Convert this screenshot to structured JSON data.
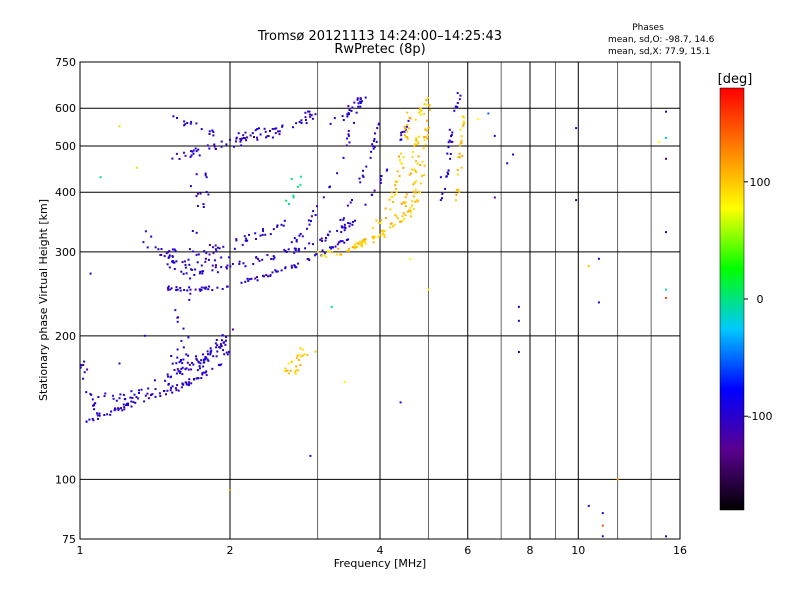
{
  "chart_data": {
    "type": "scatter",
    "title": "Tromsø 20121113 14:24:00–14:25:43",
    "subtitle": "RwPretec (8p)",
    "xlabel": "Frequency [MHz]",
    "ylabel": "Stationary phase Virtual Height [km]",
    "x_scale": "log",
    "y_scale": "log",
    "xlim": [
      1,
      16
    ],
    "ylim": [
      75,
      750
    ],
    "x_ticks": [
      1,
      2,
      4,
      6,
      8,
      10,
      16
    ],
    "x_minor_ticks": [
      3,
      5,
      7,
      9,
      12,
      14
    ],
    "y_ticks": [
      75,
      100,
      200,
      300,
      400,
      500,
      600,
      750
    ],
    "grid": true,
    "stats": {
      "title": "Phases",
      "line_o": "mean, sd,O: -98.7, 14.6",
      "line_x": "mean, sd,X:  77.9, 15.1"
    },
    "colorbar": {
      "label": "[deg]",
      "ticks": [
        100,
        0,
        -100
      ],
      "range": [
        -180,
        180
      ],
      "colors": [
        "#000000",
        "#5a0090",
        "#0000ff",
        "#00c8ff",
        "#00ff00",
        "#ffff00",
        "#ff8000",
        "#ff0000"
      ]
    },
    "traces": [
      {
        "points": [
          [
            1.0,
            132
          ],
          [
            1.05,
            133
          ],
          [
            1.1,
            136
          ],
          [
            1.15,
            138
          ],
          [
            1.2,
            140
          ],
          [
            1.25,
            143
          ],
          [
            1.3,
            146
          ],
          [
            1.35,
            148
          ],
          [
            1.4,
            150
          ],
          [
            1.5,
            153
          ],
          [
            1.6,
            157
          ],
          [
            1.7,
            162
          ],
          [
            1.8,
            168
          ],
          [
            1.9,
            176
          ],
          [
            2.0,
            186
          ]
        ],
        "phase": -100,
        "count": 90,
        "spread": 0.015
      },
      {
        "points": [
          [
            1.05,
            152
          ],
          [
            1.1,
            150
          ],
          [
            1.2,
            148
          ],
          [
            1.3,
            151
          ],
          [
            1.4,
            156
          ],
          [
            1.5,
            162
          ],
          [
            1.6,
            168
          ],
          [
            1.7,
            175
          ],
          [
            1.8,
            183
          ],
          [
            1.9,
            192
          ],
          [
            2.0,
            204
          ]
        ],
        "phase": -100,
        "count": 60,
        "spread": 0.02
      },
      {
        "points": [
          [
            1.0,
            178
          ],
          [
            1.02,
            165
          ],
          [
            1.04,
            150
          ],
          [
            1.06,
            140
          ]
        ],
        "phase": -100,
        "count": 14,
        "spread": 0.03
      },
      {
        "points": [
          [
            1.5,
            252
          ],
          [
            1.7,
            250
          ],
          [
            1.9,
            252
          ],
          [
            2.1,
            258
          ],
          [
            2.3,
            265
          ],
          [
            2.5,
            273
          ],
          [
            2.7,
            280
          ],
          [
            2.9,
            290
          ],
          [
            3.1,
            300
          ],
          [
            3.3,
            312
          ],
          [
            3.5,
            322
          ]
        ],
        "phase": -100,
        "count": 80,
        "spread": 0.01
      },
      {
        "points": [
          [
            1.5,
            275
          ],
          [
            1.7,
            272
          ],
          [
            1.9,
            275
          ],
          [
            2.1,
            283
          ],
          [
            2.4,
            292
          ],
          [
            2.7,
            302
          ],
          [
            3.0,
            315
          ],
          [
            3.3,
            330
          ],
          [
            3.6,
            350
          ]
        ],
        "phase": -100,
        "count": 60,
        "spread": 0.015
      },
      {
        "points": [
          [
            1.4,
            300
          ],
          [
            1.6,
            298
          ],
          [
            1.8,
            302
          ],
          [
            2.0,
            310
          ],
          [
            2.2,
            320
          ],
          [
            2.4,
            332
          ],
          [
            2.6,
            345
          ]
        ],
        "phase": -100,
        "count": 40,
        "spread": 0.02
      },
      {
        "points": [
          [
            1.3,
            330
          ],
          [
            1.4,
            310
          ],
          [
            1.5,
            295
          ],
          [
            1.6,
            285
          ],
          [
            1.7,
            280
          ],
          [
            1.8,
            282
          ],
          [
            1.9,
            290
          ],
          [
            2.0,
            300
          ]
        ],
        "phase": -100,
        "count": 40,
        "spread": 0.04
      },
      {
        "points": [
          [
            1.5,
            470
          ],
          [
            1.7,
            485
          ],
          [
            1.9,
            500
          ],
          [
            2.1,
            510
          ],
          [
            2.3,
            520
          ],
          [
            2.5,
            535
          ],
          [
            2.7,
            555
          ],
          [
            2.9,
            580
          ],
          [
            3.0,
            600
          ]
        ],
        "phase": -100,
        "count": 55,
        "spread": 0.02
      },
      {
        "points": [
          [
            1.55,
            580
          ],
          [
            1.7,
            545
          ],
          [
            1.9,
            520
          ],
          [
            2.1,
            525
          ],
          [
            2.4,
            540
          ],
          [
            2.7,
            560
          ],
          [
            2.9,
            590
          ]
        ],
        "phase": -100,
        "count": 40,
        "spread": 0.02
      },
      {
        "points": [
          [
            1.6,
            160
          ],
          [
            1.6,
            220
          ],
          [
            1.65,
            280
          ],
          [
            1.7,
            350
          ],
          [
            1.75,
            420
          ],
          [
            1.8,
            500
          ]
        ],
        "phase": -100,
        "count": 40,
        "spread": 0.04
      },
      {
        "points": [
          [
            1.55,
            180
          ],
          [
            1.6,
            170
          ],
          [
            1.7,
            172
          ],
          [
            1.8,
            180
          ],
          [
            1.9,
            190
          ],
          [
            2.0,
            200
          ]
        ],
        "phase": -100,
        "count": 45,
        "spread": 0.02
      },
      {
        "points": [
          [
            2.6,
            300
          ],
          [
            2.8,
            330
          ],
          [
            3.0,
            370
          ],
          [
            3.2,
            420
          ],
          [
            3.4,
            480
          ],
          [
            3.5,
            540
          ],
          [
            3.6,
            600
          ],
          [
            3.7,
            640
          ]
        ],
        "phase": -100,
        "count": 35,
        "spread": 0.01
      },
      {
        "points": [
          [
            3.0,
            310
          ],
          [
            3.2,
            330
          ],
          [
            3.4,
            360
          ],
          [
            3.6,
            410
          ],
          [
            3.8,
            460
          ],
          [
            3.9,
            510
          ],
          [
            4.0,
            560
          ]
        ],
        "phase": -100,
        "count": 30,
        "spread": 0.01
      },
      {
        "points": [
          [
            3.3,
            330
          ],
          [
            3.6,
            355
          ],
          [
            3.9,
            400
          ],
          [
            4.2,
            460
          ],
          [
            4.4,
            520
          ],
          [
            4.6,
            580
          ]
        ],
        "phase": -100,
        "count": 25,
        "spread": 0.01
      },
      {
        "points": [
          [
            3.2,
            560
          ],
          [
            3.4,
            580
          ],
          [
            3.6,
            610
          ],
          [
            3.7,
            640
          ]
        ],
        "phase": -100,
        "count": 20,
        "spread": 0.02
      },
      {
        "points": [
          [
            5.3,
            380
          ],
          [
            5.4,
            420
          ],
          [
            5.5,
            480
          ],
          [
            5.6,
            560
          ],
          [
            5.7,
            620
          ],
          [
            5.8,
            650
          ]
        ],
        "phase": -100,
        "count": 30,
        "spread": 0.01
      },
      {
        "points": [
          [
            3.0,
            295
          ],
          [
            3.3,
            300
          ],
          [
            3.6,
            310
          ],
          [
            3.9,
            320
          ],
          [
            4.2,
            335
          ],
          [
            4.5,
            355
          ],
          [
            4.7,
            380
          ],
          [
            4.8,
            420
          ],
          [
            4.9,
            480
          ],
          [
            4.95,
            540
          ],
          [
            5.0,
            640
          ]
        ],
        "phase": 100,
        "count": 90,
        "spread": 0.015
      },
      {
        "points": [
          [
            3.5,
            305
          ],
          [
            3.8,
            318
          ],
          [
            4.1,
            335
          ],
          [
            4.4,
            360
          ],
          [
            4.6,
            400
          ],
          [
            4.7,
            460
          ],
          [
            4.75,
            540
          ],
          [
            4.8,
            620
          ]
        ],
        "phase": 100,
        "count": 60,
        "spread": 0.015
      },
      {
        "points": [
          [
            3.9,
            340
          ],
          [
            4.1,
            360
          ],
          [
            4.3,
            400
          ],
          [
            4.4,
            450
          ],
          [
            4.5,
            520
          ],
          [
            4.6,
            580
          ]
        ],
        "phase": 100,
        "count": 40,
        "spread": 0.015
      },
      {
        "points": [
          [
            5.7,
            380
          ],
          [
            5.75,
            420
          ],
          [
            5.8,
            480
          ],
          [
            5.85,
            540
          ],
          [
            5.9,
            580
          ]
        ],
        "phase": 100,
        "count": 25,
        "spread": 0.01
      },
      {
        "points": [
          [
            2.6,
            168
          ],
          [
            2.7,
            175
          ],
          [
            2.8,
            182
          ],
          [
            2.9,
            188
          ]
        ],
        "phase": 100,
        "count": 25,
        "spread": 0.03
      },
      {
        "points": [
          [
            2.6,
            380
          ],
          [
            2.7,
            410
          ],
          [
            2.8,
            440
          ]
        ],
        "phase": 0,
        "count": 8,
        "spread": 0.04
      }
    ],
    "isolated_points": [
      {
        "x": 1.05,
        "y": 270,
        "phase": -100
      },
      {
        "x": 1.1,
        "y": 430,
        "phase": 0
      },
      {
        "x": 1.2,
        "y": 550,
        "phase": 100
      },
      {
        "x": 1.2,
        "y": 175,
        "phase": -100
      },
      {
        "x": 1.3,
        "y": 450,
        "phase": 60
      },
      {
        "x": 1.35,
        "y": 200,
        "phase": -100
      },
      {
        "x": 2.0,
        "y": 95,
        "phase": 120
      },
      {
        "x": 2.9,
        "y": 112,
        "phase": -100
      },
      {
        "x": 3.2,
        "y": 230,
        "phase": 0
      },
      {
        "x": 3.4,
        "y": 160,
        "phase": 80
      },
      {
        "x": 4.4,
        "y": 145,
        "phase": -100
      },
      {
        "x": 4.6,
        "y": 290,
        "phase": 80
      },
      {
        "x": 5.0,
        "y": 250,
        "phase": 80
      },
      {
        "x": 5.3,
        "y": 430,
        "phase": -100
      },
      {
        "x": 6.3,
        "y": 570,
        "phase": 80
      },
      {
        "x": 6.6,
        "y": 585,
        "phase": -50
      },
      {
        "x": 6.8,
        "y": 390,
        "phase": -130
      },
      {
        "x": 7.2,
        "y": 460,
        "phase": -100
      },
      {
        "x": 7.4,
        "y": 480,
        "phase": -100
      },
      {
        "x": 7.6,
        "y": 230,
        "phase": -100
      },
      {
        "x": 7.6,
        "y": 215,
        "phase": -100
      },
      {
        "x": 7.6,
        "y": 185,
        "phase": -100
      },
      {
        "x": 6.8,
        "y": 525,
        "phase": -100
      },
      {
        "x": 9.9,
        "y": 545,
        "phase": -100
      },
      {
        "x": 9.9,
        "y": 385,
        "phase": -140
      },
      {
        "x": 10.5,
        "y": 280,
        "phase": 100
      },
      {
        "x": 11.0,
        "y": 290,
        "phase": -100
      },
      {
        "x": 11.0,
        "y": 235,
        "phase": -100
      },
      {
        "x": 10.5,
        "y": 88,
        "phase": -100
      },
      {
        "x": 11.2,
        "y": 85,
        "phase": -100
      },
      {
        "x": 11.2,
        "y": 80,
        "phase": 150
      },
      {
        "x": 11.2,
        "y": 76,
        "phase": -100
      },
      {
        "x": 12.0,
        "y": 100,
        "phase": 120
      },
      {
        "x": 14.5,
        "y": 510,
        "phase": 80
      },
      {
        "x": 15.0,
        "y": 520,
        "phase": -20
      },
      {
        "x": 15.0,
        "y": 470,
        "phase": -120
      },
      {
        "x": 15.0,
        "y": 330,
        "phase": -100
      },
      {
        "x": 15.0,
        "y": 250,
        "phase": 0
      },
      {
        "x": 15.0,
        "y": 240,
        "phase": 150
      },
      {
        "x": 15.0,
        "y": 590,
        "phase": -100
      },
      {
        "x": 15.0,
        "y": 76,
        "phase": -100
      }
    ]
  }
}
